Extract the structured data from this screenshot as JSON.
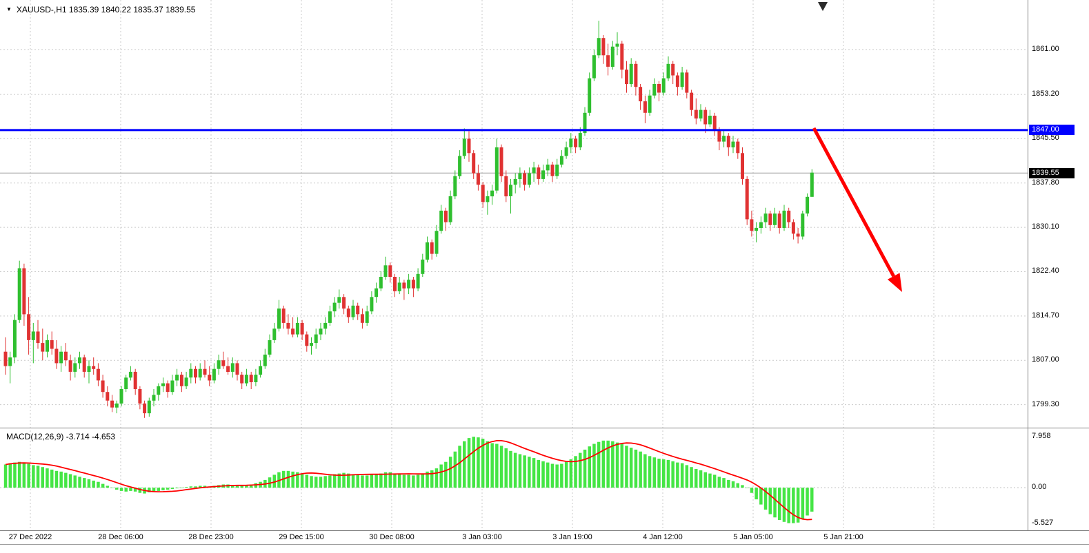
{
  "header": {
    "collapse_icon": "▼",
    "symbol": "XAUUSD-",
    "timeframe": "H1",
    "symbol_ohlc_line": "XAUUSD-,H1 1835.39 1840.22 1835.37 1839.55"
  },
  "colors": {
    "background": "#FFFFFF",
    "grid": "#C9C9C9",
    "bull": "#2FBF2F",
    "bear": "#E03232",
    "macd_bar": "#45E545",
    "signal_line": "#FF0000",
    "hline": "#0000FF",
    "hline_tag_bg": "#0000FF",
    "current_price_line": "#9A9A9A",
    "current_tag_bg": "#000000",
    "arrow": "#FF0000",
    "axis_text": "#000000",
    "separator": "#808080",
    "zero_line": "#B8B8B8",
    "shift_marker": "#2B2B2B"
  },
  "chart_data": {
    "type": "candlestick",
    "symbol": "XAUUSD-",
    "timeframe": "H1",
    "last_quote": {
      "open": 1835.39,
      "high": 1840.22,
      "low": 1835.37,
      "close": 1839.55
    },
    "price_axis": {
      "grid_prices": [
        1861.0,
        1853.2,
        1845.5,
        1837.8,
        1830.1,
        1822.4,
        1814.7,
        1807.0,
        1799.3
      ],
      "ylim_top": 1869.6,
      "ylim_bottom": 1795.3
    },
    "time_labels": [
      "27 Dec 2022",
      "28 Dec 06:00",
      "28 Dec 23:00",
      "29 Dec 15:00",
      "30 Dec 08:00",
      "3 Jan 03:00",
      "3 Jan 19:00",
      "4 Jan 12:00",
      "5 Jan 05:00",
      "5 Jan 21:00"
    ],
    "hline": {
      "price": 1847.0,
      "label": "1847.00"
    },
    "current_price": {
      "price": 1839.55,
      "label": "1839.55"
    },
    "candles_ohlc": [
      [
        1808.5,
        1811.0,
        1804.5,
        1806.0
      ],
      [
        1806.0,
        1808.5,
        1803.0,
        1807.5
      ],
      [
        1807.5,
        1815.0,
        1806.5,
        1814.0
      ],
      [
        1814.0,
        1824.3,
        1813.5,
        1823.0
      ],
      [
        1823.0,
        1823.8,
        1813.0,
        1815.0
      ],
      [
        1815.0,
        1818.0,
        1808.0,
        1810.5
      ],
      [
        1810.5,
        1813.5,
        1806.5,
        1812.0
      ],
      [
        1812.0,
        1814.0,
        1809.0,
        1810.0
      ],
      [
        1810.0,
        1812.5,
        1807.0,
        1808.5
      ],
      [
        1808.5,
        1811.5,
        1807.5,
        1810.5
      ],
      [
        1810.5,
        1812.0,
        1808.0,
        1809.0
      ],
      [
        1809.0,
        1810.5,
        1805.5,
        1806.5
      ],
      [
        1806.5,
        1809.5,
        1805.0,
        1808.5
      ],
      [
        1808.5,
        1810.0,
        1806.0,
        1807.0
      ],
      [
        1807.0,
        1808.0,
        1803.5,
        1805.0
      ],
      [
        1805.0,
        1807.5,
        1804.0,
        1806.5
      ],
      [
        1806.5,
        1808.5,
        1805.5,
        1807.5
      ],
      [
        1807.5,
        1808.0,
        1804.0,
        1805.0
      ],
      [
        1805.0,
        1807.0,
        1803.0,
        1806.0
      ],
      [
        1806.0,
        1807.5,
        1804.5,
        1805.5
      ],
      [
        1805.5,
        1806.5,
        1802.5,
        1803.5
      ],
      [
        1803.5,
        1804.5,
        1800.5,
        1801.5
      ],
      [
        1801.5,
        1802.5,
        1799.0,
        1800.0
      ],
      [
        1800.0,
        1801.0,
        1798.0,
        1798.8
      ],
      [
        1798.8,
        1800.0,
        1797.8,
        1799.5
      ],
      [
        1799.5,
        1802.5,
        1799.0,
        1802.0
      ],
      [
        1802.0,
        1804.5,
        1801.5,
        1804.0
      ],
      [
        1804.0,
        1806.0,
        1803.5,
        1805.0
      ],
      [
        1805.0,
        1805.5,
        1801.0,
        1802.0
      ],
      [
        1802.0,
        1802.5,
        1798.5,
        1799.5
      ],
      [
        1799.5,
        1800.0,
        1797.0,
        1797.8
      ],
      [
        1797.8,
        1800.5,
        1797.2,
        1800.0
      ],
      [
        1800.0,
        1802.0,
        1799.0,
        1801.0
      ],
      [
        1801.0,
        1803.0,
        1800.0,
        1802.5
      ],
      [
        1802.5,
        1804.0,
        1801.5,
        1803.0
      ],
      [
        1803.0,
        1803.5,
        1800.5,
        1801.5
      ],
      [
        1801.5,
        1804.5,
        1801.0,
        1803.5
      ],
      [
        1803.5,
        1805.5,
        1802.5,
        1804.5
      ],
      [
        1804.5,
        1805.0,
        1801.5,
        1802.5
      ],
      [
        1802.5,
        1805.0,
        1802.0,
        1804.0
      ],
      [
        1804.0,
        1806.5,
        1803.0,
        1805.5
      ],
      [
        1805.5,
        1806.0,
        1803.0,
        1804.0
      ],
      [
        1804.0,
        1806.5,
        1803.5,
        1805.5
      ],
      [
        1805.5,
        1807.0,
        1804.0,
        1804.5
      ],
      [
        1804.5,
        1806.0,
        1802.5,
        1803.5
      ],
      [
        1803.5,
        1806.5,
        1803.0,
        1805.5
      ],
      [
        1805.5,
        1808.0,
        1804.5,
        1807.0
      ],
      [
        1807.0,
        1808.5,
        1805.5,
        1806.0
      ],
      [
        1806.0,
        1807.5,
        1804.5,
        1805.0
      ],
      [
        1805.0,
        1807.5,
        1804.0,
        1806.5
      ],
      [
        1806.5,
        1807.0,
        1803.5,
        1804.5
      ],
      [
        1804.5,
        1805.0,
        1802.0,
        1803.0
      ],
      [
        1803.0,
        1805.5,
        1802.5,
        1804.5
      ],
      [
        1804.5,
        1805.0,
        1802.0,
        1803.2
      ],
      [
        1803.2,
        1805.5,
        1802.5,
        1804.5
      ],
      [
        1804.5,
        1807.0,
        1804.0,
        1806.0
      ],
      [
        1806.0,
        1809.0,
        1805.5,
        1808.0
      ],
      [
        1808.0,
        1811.5,
        1807.5,
        1810.5
      ],
      [
        1810.5,
        1813.5,
        1810.0,
        1812.5
      ],
      [
        1812.5,
        1817.5,
        1812.0,
        1816.0
      ],
      [
        1816.0,
        1816.5,
        1812.5,
        1813.5
      ],
      [
        1813.5,
        1815.0,
        1811.5,
        1812.5
      ],
      [
        1812.5,
        1814.5,
        1811.0,
        1811.5
      ],
      [
        1811.5,
        1814.5,
        1811.0,
        1813.5
      ],
      [
        1813.5,
        1814.0,
        1810.5,
        1811.5
      ],
      [
        1811.5,
        1812.0,
        1808.5,
        1809.5
      ],
      [
        1809.5,
        1811.0,
        1808.0,
        1810.0
      ],
      [
        1810.0,
        1812.5,
        1809.0,
        1811.5
      ],
      [
        1811.5,
        1813.5,
        1810.5,
        1812.5
      ],
      [
        1812.5,
        1814.5,
        1811.5,
        1813.5
      ],
      [
        1813.5,
        1816.5,
        1813.0,
        1815.5
      ],
      [
        1815.5,
        1818.0,
        1814.5,
        1817.0
      ],
      [
        1817.0,
        1819.3,
        1816.0,
        1818.0
      ],
      [
        1818.0,
        1818.5,
        1815.0,
        1816.0
      ],
      [
        1816.0,
        1816.5,
        1813.5,
        1814.5
      ],
      [
        1814.5,
        1817.5,
        1814.0,
        1816.5
      ],
      [
        1816.5,
        1817.0,
        1814.0,
        1815.0
      ],
      [
        1815.0,
        1816.0,
        1812.5,
        1813.5
      ],
      [
        1813.5,
        1816.5,
        1813.0,
        1815.5
      ],
      [
        1815.5,
        1819.0,
        1815.0,
        1818.0
      ],
      [
        1818.0,
        1820.5,
        1817.0,
        1819.5
      ],
      [
        1819.5,
        1822.5,
        1819.0,
        1821.5
      ],
      [
        1821.5,
        1825.0,
        1821.0,
        1823.5
      ],
      [
        1823.5,
        1824.0,
        1820.5,
        1821.5
      ],
      [
        1821.5,
        1822.0,
        1818.0,
        1819.0
      ],
      [
        1819.0,
        1821.5,
        1818.5,
        1820.5
      ],
      [
        1820.5,
        1821.0,
        1817.5,
        1819.5
      ],
      [
        1819.5,
        1822.0,
        1818.5,
        1821.0
      ],
      [
        1821.0,
        1821.5,
        1818.0,
        1819.5
      ],
      [
        1819.5,
        1823.0,
        1819.0,
        1822.0
      ],
      [
        1822.0,
        1825.5,
        1821.5,
        1824.5
      ],
      [
        1824.5,
        1828.5,
        1824.0,
        1827.5
      ],
      [
        1827.5,
        1828.0,
        1824.5,
        1825.5
      ],
      [
        1825.5,
        1830.5,
        1825.0,
        1829.5
      ],
      [
        1829.5,
        1834.0,
        1829.0,
        1833.0
      ],
      [
        1833.0,
        1833.5,
        1829.5,
        1831.0
      ],
      [
        1831.0,
        1836.5,
        1830.5,
        1835.5
      ],
      [
        1835.5,
        1840.0,
        1835.0,
        1839.0
      ],
      [
        1839.0,
        1843.5,
        1838.5,
        1842.5
      ],
      [
        1842.5,
        1847.3,
        1842.0,
        1845.5
      ],
      [
        1845.5,
        1846.8,
        1841.5,
        1843.0
      ],
      [
        1843.0,
        1843.5,
        1838.5,
        1839.5
      ],
      [
        1839.5,
        1841.0,
        1836.5,
        1837.5
      ],
      [
        1837.5,
        1838.0,
        1833.5,
        1834.5
      ],
      [
        1834.5,
        1836.5,
        1832.3,
        1835.5
      ],
      [
        1835.5,
        1837.5,
        1834.0,
        1836.5
      ],
      [
        1836.5,
        1845.5,
        1836.0,
        1844.0
      ],
      [
        1844.0,
        1844.5,
        1838.0,
        1839.0
      ],
      [
        1839.0,
        1840.0,
        1834.5,
        1835.5
      ],
      [
        1835.5,
        1838.5,
        1832.5,
        1837.5
      ],
      [
        1837.5,
        1839.5,
        1836.0,
        1838.5
      ],
      [
        1838.5,
        1840.5,
        1837.0,
        1839.5
      ],
      [
        1839.5,
        1840.0,
        1836.5,
        1837.5
      ],
      [
        1837.5,
        1840.5,
        1837.0,
        1839.5
      ],
      [
        1839.5,
        1841.5,
        1838.0,
        1840.5
      ],
      [
        1840.5,
        1841.0,
        1837.5,
        1838.5
      ],
      [
        1838.5,
        1841.0,
        1838.0,
        1840.0
      ],
      [
        1840.0,
        1842.0,
        1839.0,
        1841.0
      ],
      [
        1841.0,
        1841.5,
        1838.0,
        1839.0
      ],
      [
        1839.0,
        1842.0,
        1838.5,
        1841.0
      ],
      [
        1841.0,
        1843.5,
        1840.5,
        1842.5
      ],
      [
        1842.5,
        1845.0,
        1842.0,
        1844.0
      ],
      [
        1844.0,
        1846.5,
        1843.0,
        1845.5
      ],
      [
        1845.5,
        1846.0,
        1843.0,
        1844.0
      ],
      [
        1844.0,
        1847.5,
        1843.5,
        1846.5
      ],
      [
        1846.5,
        1851.0,
        1846.0,
        1850.0
      ],
      [
        1850.0,
        1857.0,
        1849.5,
        1856.0
      ],
      [
        1856.0,
        1861.0,
        1855.5,
        1860.0
      ],
      [
        1860.0,
        1866.0,
        1859.5,
        1863.0
      ],
      [
        1863.0,
        1863.5,
        1858.5,
        1860.0
      ],
      [
        1860.0,
        1862.0,
        1856.5,
        1858.0
      ],
      [
        1858.0,
        1862.5,
        1857.5,
        1861.5
      ],
      [
        1861.5,
        1864.0,
        1860.0,
        1862.0
      ],
      [
        1862.0,
        1862.5,
        1856.0,
        1857.5
      ],
      [
        1857.5,
        1859.0,
        1853.5,
        1855.0
      ],
      [
        1855.0,
        1859.5,
        1854.5,
        1858.5
      ],
      [
        1858.5,
        1859.0,
        1853.0,
        1854.5
      ],
      [
        1854.5,
        1855.0,
        1850.5,
        1852.0
      ],
      [
        1852.0,
        1853.0,
        1848.2,
        1850.0
      ],
      [
        1850.0,
        1854.0,
        1849.5,
        1853.0
      ],
      [
        1853.0,
        1856.0,
        1852.5,
        1855.0
      ],
      [
        1855.0,
        1855.5,
        1852.0,
        1853.5
      ],
      [
        1853.5,
        1857.0,
        1853.0,
        1856.0
      ],
      [
        1856.0,
        1859.8,
        1855.5,
        1858.5
      ],
      [
        1858.5,
        1859.0,
        1855.0,
        1856.5
      ],
      [
        1856.5,
        1857.0,
        1853.0,
        1854.5
      ],
      [
        1854.5,
        1858.0,
        1854.0,
        1857.0
      ],
      [
        1857.0,
        1857.5,
        1852.5,
        1853.5
      ],
      [
        1853.5,
        1854.0,
        1849.5,
        1850.5
      ],
      [
        1850.5,
        1852.5,
        1848.0,
        1849.0
      ],
      [
        1849.0,
        1851.5,
        1848.5,
        1850.5
      ],
      [
        1850.5,
        1851.0,
        1846.5,
        1848.0
      ],
      [
        1848.0,
        1850.5,
        1847.5,
        1849.5
      ],
      [
        1849.5,
        1850.0,
        1846.0,
        1847.0
      ],
      [
        1847.0,
        1847.5,
        1843.5,
        1845.0
      ],
      [
        1845.0,
        1847.0,
        1844.0,
        1846.0
      ],
      [
        1846.0,
        1846.5,
        1842.5,
        1844.0
      ],
      [
        1844.0,
        1846.0,
        1843.0,
        1845.0
      ],
      [
        1845.0,
        1845.5,
        1842.0,
        1843.0
      ],
      [
        1843.0,
        1844.0,
        1837.5,
        1838.5
      ],
      [
        1838.5,
        1839.0,
        1830.5,
        1831.5
      ],
      [
        1831.5,
        1833.0,
        1828.5,
        1829.5
      ],
      [
        1829.5,
        1831.0,
        1827.5,
        1830.0
      ],
      [
        1830.0,
        1832.0,
        1829.0,
        1831.0
      ],
      [
        1831.0,
        1833.5,
        1830.0,
        1832.5
      ],
      [
        1832.5,
        1833.0,
        1829.5,
        1830.5
      ],
      [
        1830.5,
        1833.5,
        1830.0,
        1832.5
      ],
      [
        1832.5,
        1833.0,
        1829.0,
        1830.0
      ],
      [
        1830.0,
        1834.0,
        1829.5,
        1833.0
      ],
      [
        1833.0,
        1833.5,
        1830.0,
        1831.0
      ],
      [
        1831.0,
        1831.5,
        1828.0,
        1829.0
      ],
      [
        1829.0,
        1830.0,
        1827.3,
        1828.5
      ],
      [
        1828.5,
        1833.0,
        1828.0,
        1832.5
      ],
      [
        1832.5,
        1836.0,
        1832.0,
        1835.4
      ],
      [
        1835.4,
        1840.2,
        1835.4,
        1839.6
      ]
    ],
    "indicator": {
      "type": "macd_histogram_with_signal",
      "label": "MACD(12,26,9) -3.714 -4.653",
      "current_values": {
        "macd": -3.714,
        "signal": -4.653
      },
      "signal_period": 9,
      "axis_labels": [
        {
          "value": 7.958,
          "text": "7.958"
        },
        {
          "value": 0,
          "text": "0.00"
        },
        {
          "value": -5.527,
          "text": "-5.527"
        }
      ],
      "ylim": [
        -6.6,
        9.2
      ],
      "macd_series": [
        3.6,
        3.8,
        3.9,
        4.0,
        3.9,
        3.7,
        3.5,
        3.4,
        3.2,
        3.0,
        2.8,
        2.6,
        2.5,
        2.3,
        2.1,
        1.9,
        1.7,
        1.5,
        1.3,
        1.1,
        0.9,
        0.6,
        0.3,
        0.0,
        -0.3,
        -0.5,
        -0.6,
        -0.5,
        -0.6,
        -0.8,
        -0.9,
        -0.7,
        -0.6,
        -0.5,
        -0.4,
        -0.3,
        -0.2,
        -0.1,
        0.0,
        0.1,
        0.2,
        0.2,
        0.3,
        0.3,
        0.2,
        0.3,
        0.4,
        0.5,
        0.5,
        0.4,
        0.3,
        0.3,
        0.4,
        0.5,
        0.7,
        0.9,
        1.2,
        1.6,
        2.0,
        2.4,
        2.6,
        2.6,
        2.5,
        2.4,
        2.2,
        2.0,
        1.8,
        1.7,
        1.7,
        1.8,
        1.9,
        2.1,
        2.2,
        2.3,
        2.2,
        2.1,
        2.0,
        1.9,
        1.9,
        2.0,
        2.1,
        2.2,
        2.4,
        2.4,
        2.2,
        2.1,
        2.0,
        2.0,
        1.9,
        2.0,
        2.2,
        2.5,
        2.7,
        3.0,
        3.6,
        4.0,
        4.8,
        5.6,
        6.5,
        7.2,
        7.7,
        7.9,
        7.8,
        7.6,
        7.2,
        6.9,
        6.8,
        6.5,
        6.1,
        5.7,
        5.4,
        5.2,
        5.0,
        4.8,
        4.6,
        4.3,
        4.1,
        3.9,
        3.7,
        3.6,
        3.7,
        4.0,
        4.4,
        4.9,
        5.4,
        5.9,
        6.4,
        6.8,
        7.1,
        7.3,
        7.3,
        7.2,
        7.0,
        6.8,
        6.5,
        6.2,
        5.9,
        5.6,
        5.2,
        4.9,
        4.7,
        4.5,
        4.4,
        4.3,
        4.1,
        3.9,
        3.8,
        3.5,
        3.2,
        2.9,
        2.7,
        2.4,
        2.2,
        2.0,
        1.7,
        1.5,
        1.2,
        1.0,
        0.7,
        0.4,
        0.0,
        -0.8,
        -1.8,
        -2.6,
        -3.4,
        -4.1,
        -4.6,
        -5.0,
        -5.3,
        -5.5,
        -5.5,
        -5.4,
        -4.9,
        -4.3,
        -3.7
      ]
    }
  },
  "annotations": {
    "horizontal_line": {
      "price": 1847.0,
      "color": "#0000FF"
    },
    "trend_arrow": {
      "direction": "down-right",
      "color": "#FF0000"
    }
  }
}
